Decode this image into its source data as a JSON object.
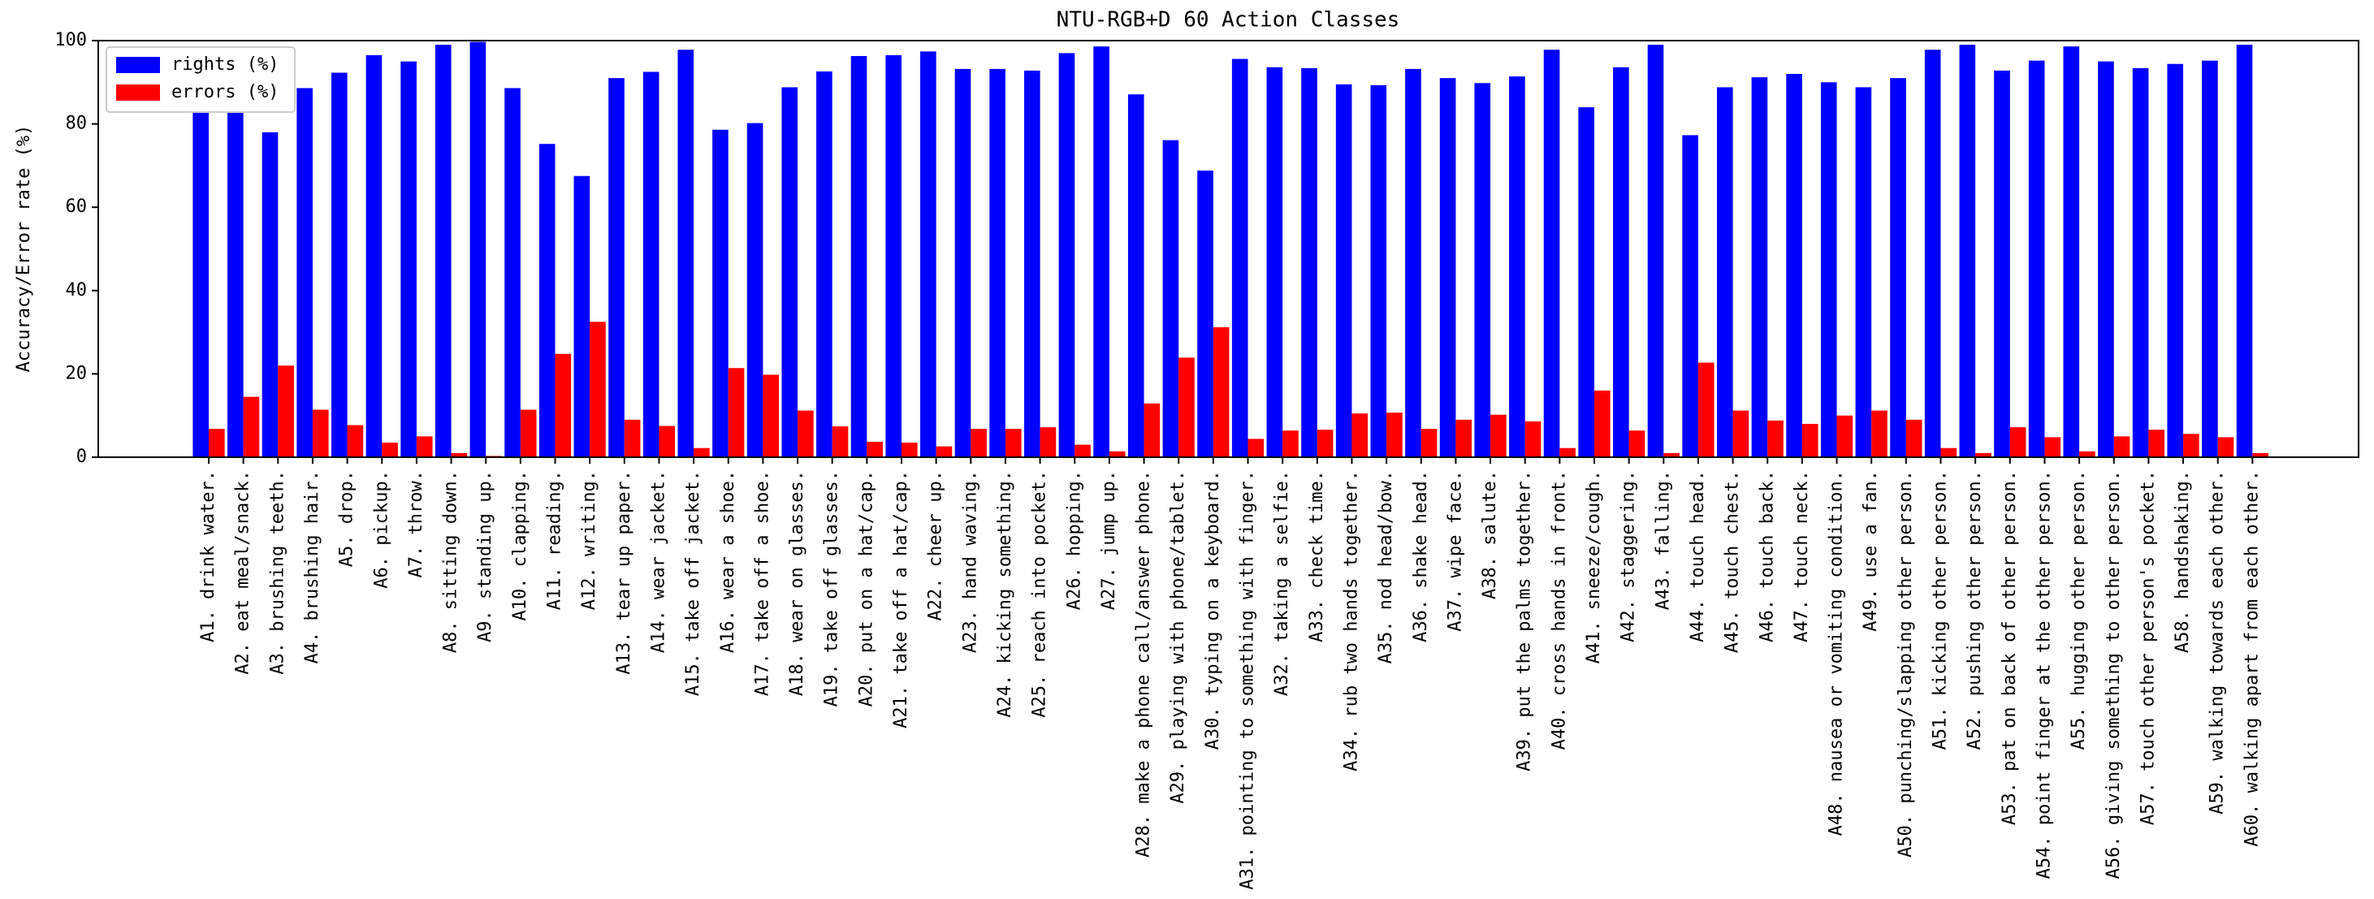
{
  "chart_data": {
    "type": "bar",
    "title": "NTU-RGB+D 60 Action Classes",
    "y_label": "Accuracy/Error rate (%)",
    "categories": [
      "A1. drink water.",
      "A2. eat meal/snack.",
      "A3. brushing teeth.",
      "A4. brushing hair.",
      "A5. drop.",
      "A6. pickup.",
      "A7. throw.",
      "A8. sitting down.",
      "A9. standing up.",
      "A10. clapping.",
      "A11. reading.",
      "A12. writing.",
      "A13. tear up paper.",
      "A14. wear jacket.",
      "A15. take off jacket.",
      "A16. wear a shoe.",
      "A17. take off a shoe.",
      "A18. wear on glasses.",
      "A19. take off glasses.",
      "A20. put on a hat/cap.",
      "A21. take off a hat/cap.",
      "A22. cheer up.",
      "A23. hand waving.",
      "A24. kicking something.",
      "A25. reach into pocket.",
      "A26. hopping.",
      "A27. jump up.",
      "A28. make a phone call/answer phone.",
      "A29. playing with phone/tablet.",
      "A30. typing on a keyboard.",
      "A31. pointing to something with finger.",
      "A32. taking a selfie.",
      "A33. check time.",
      "A34. rub two hands together.",
      "A35. nod head/bow.",
      "A36. shake head.",
      "A37. wipe face.",
      "A38. salute.",
      "A39. put the palms together.",
      "A40. cross hands in front.",
      "A41. sneeze/cough.",
      "A42. staggering.",
      "A43. falling.",
      "A44. touch head.",
      "A45. touch chest.",
      "A46. touch back.",
      "A47. touch neck.",
      "A48. nausea or vomiting condition.",
      "A49. use a fan.",
      "A50. punching/slapping other person.",
      "A51. kicking other person.",
      "A52. pushing other person.",
      "A53. pat on back of other person.",
      "A54. point finger at the other person.",
      "A55. hugging other person.",
      "A56. giving something to other person.",
      "A57. touch other person's pocket.",
      "A58. handshaking.",
      "A59. walking towards each other.",
      "A60. walking apart from each other."
    ],
    "series": [
      {
        "name": "rights (%)",
        "color": "#0000ff",
        "values": [
          93.2,
          85.5,
          78,
          88.6,
          92.3,
          96.5,
          95,
          99,
          99.7,
          88.6,
          75.2,
          67.5,
          91,
          92.5,
          97.8,
          78.6,
          80.2,
          88.8,
          92.6,
          96.3,
          96.5,
          97.4,
          93.2,
          93.2,
          92.8,
          97,
          98.6,
          87.1,
          76.1,
          68.8,
          95.6,
          93.6,
          93.4,
          89.5,
          89.3,
          93.2,
          91,
          89.8,
          91.4,
          97.8,
          84,
          93.6,
          99,
          77.3,
          88.8,
          91.2,
          92,
          90,
          88.8,
          91,
          97.8,
          99,
          92.8,
          95.2,
          98.6,
          95,
          93.4,
          94.4,
          95.2,
          99
        ]
      },
      {
        "name": "errors (%)",
        "color": "#ff0000",
        "values": [
          6.8,
          14.5,
          22,
          11.4,
          7.7,
          3.5,
          5,
          1,
          0.3,
          11.4,
          24.8,
          32.5,
          9,
          7.5,
          2.2,
          21.4,
          19.8,
          11.2,
          7.4,
          3.7,
          3.5,
          2.6,
          6.8,
          6.8,
          7.2,
          3,
          1.4,
          12.9,
          23.9,
          31.2,
          4.4,
          6.4,
          6.6,
          10.5,
          10.7,
          6.8,
          9,
          10.2,
          8.6,
          2.2,
          16,
          6.4,
          1,
          22.7,
          11.2,
          8.8,
          8,
          10,
          11.2,
          9,
          2.2,
          1,
          7.2,
          4.8,
          1.4,
          5,
          6.6,
          5.6,
          4.8,
          1
        ]
      }
    ],
    "ylim": [
      0,
      100
    ],
    "yticks": [
      0,
      20,
      40,
      60,
      80,
      100
    ],
    "grid": false,
    "legend": "upper left"
  }
}
